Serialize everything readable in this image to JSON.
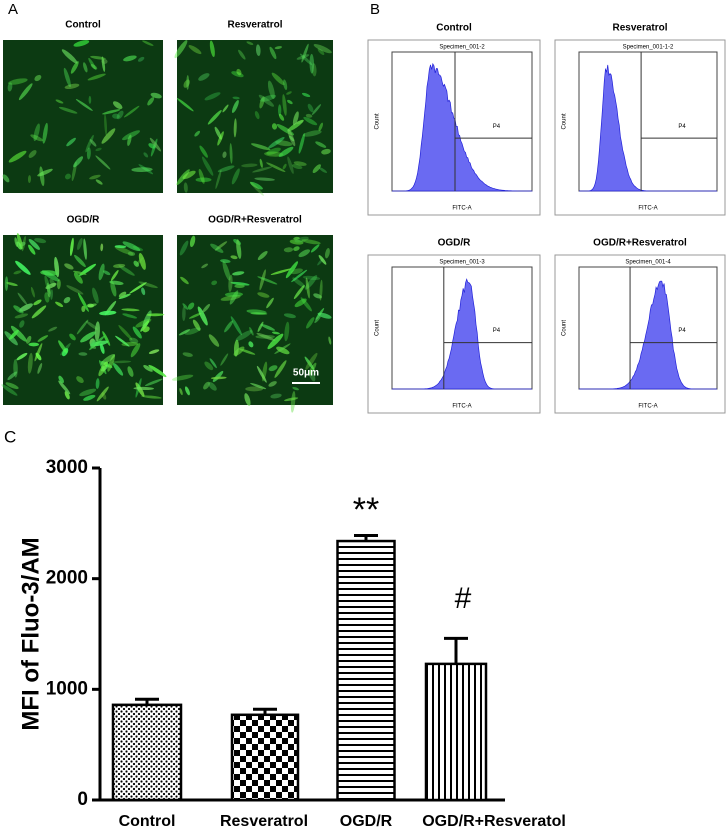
{
  "panel_a": {
    "label": "A",
    "images": [
      {
        "title": "Control"
      },
      {
        "title": "Resveratrol"
      },
      {
        "title": "OGD/R"
      },
      {
        "title": "OGD/R+Resveratrol"
      }
    ],
    "scale_bar": "50μm"
  },
  "panel_b": {
    "label": "B",
    "plots": [
      {
        "title": "Control",
        "specimen": "Specimen_001-2",
        "gate": "P4",
        "xlabel": "FITC-A",
        "ylabel": "Count"
      },
      {
        "title": "Resveratrol",
        "specimen": "Specimen_001-1-2",
        "gate": "P4",
        "xlabel": "FITC-A",
        "ylabel": "Count"
      },
      {
        "title": "OGD/R",
        "specimen": "Specimen_001-3",
        "gate": "P4",
        "xlabel": "FITC-A",
        "ylabel": "Count"
      },
      {
        "title": "OGD/R+Resveratrol",
        "specimen": "Specimen_001-4",
        "gate": "P4",
        "xlabel": "FITC-A",
        "ylabel": "Count"
      }
    ]
  },
  "chart_data": {
    "type": "bar",
    "label": "C",
    "ylabel": "MFI of Fluo-3/AM",
    "categories": [
      "Control",
      "Resveratrol",
      "OGD/R",
      "OGD/R+Resveratol"
    ],
    "values": [
      860,
      770,
      2340,
      1230
    ],
    "errors": [
      50,
      50,
      50,
      230
    ],
    "annotations": [
      "**",
      "#"
    ],
    "ylim": [
      0,
      3000
    ],
    "yticks": [
      0,
      1000,
      2000,
      3000
    ]
  }
}
